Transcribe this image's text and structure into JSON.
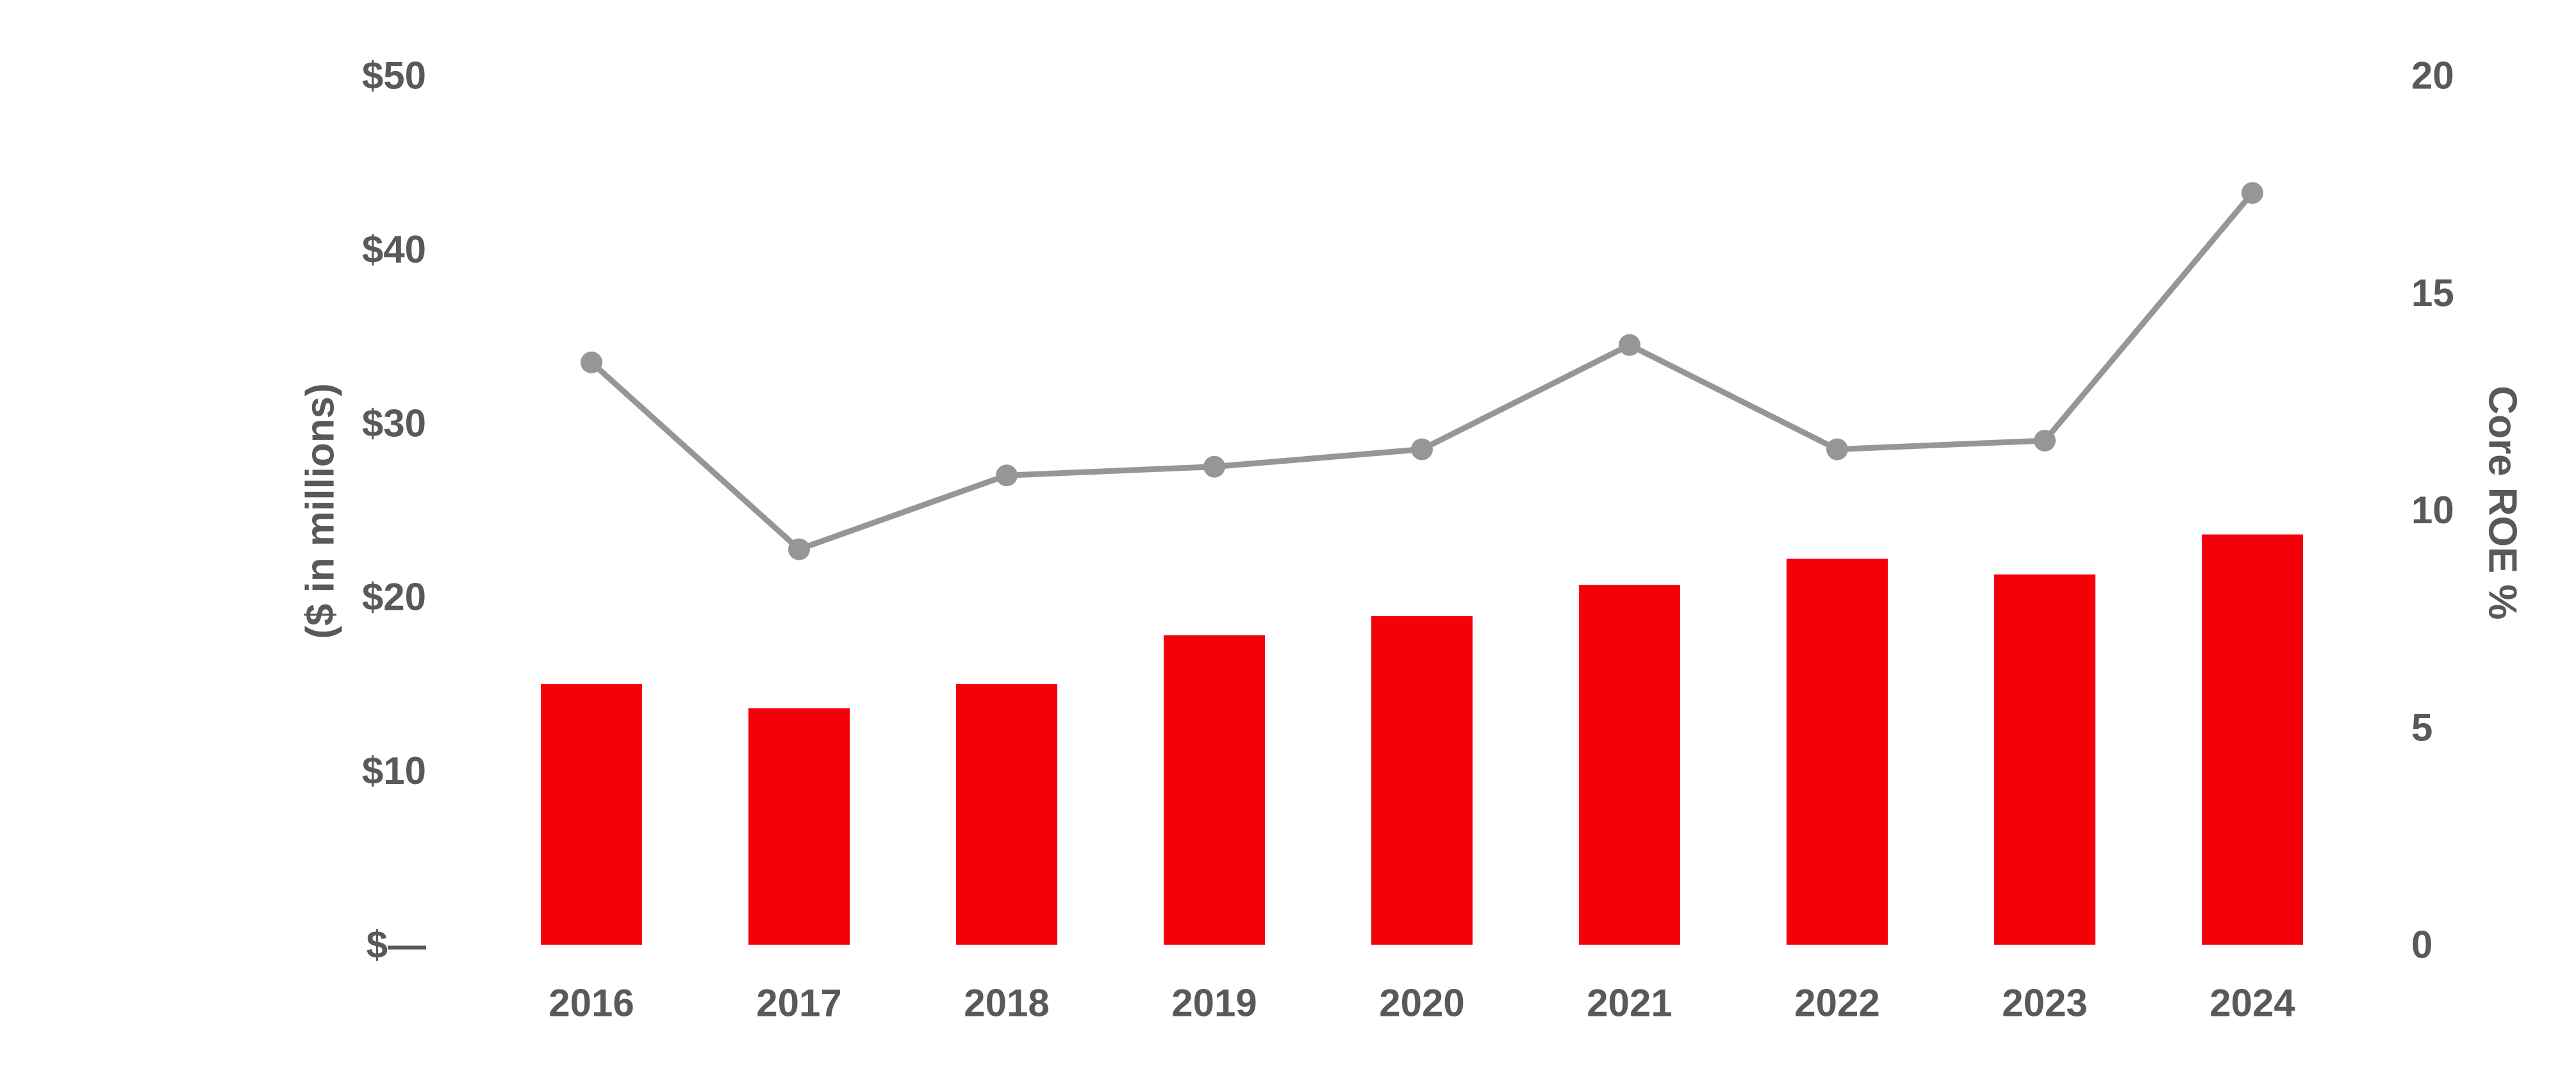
{
  "chart_data": {
    "type": "bar",
    "categories": [
      "2016",
      "2017",
      "2018",
      "2019",
      "2020",
      "2021",
      "2022",
      "2023",
      "2024"
    ],
    "series": [
      {
        "type": "bar",
        "axis": "left",
        "color": "#f40008",
        "values": [
          15.0,
          13.6,
          15.0,
          17.8,
          18.9,
          20.7,
          22.2,
          21.3,
          23.6
        ]
      },
      {
        "type": "line",
        "axis": "right",
        "color": "#969696",
        "values": [
          13.4,
          9.1,
          10.8,
          11.0,
          11.4,
          13.8,
          11.4,
          11.6,
          17.3
        ]
      }
    ],
    "ylabel": "($ in millions)",
    "y2label": "Core ROE %",
    "ylim": [
      0,
      50
    ],
    "y2lim": [
      0,
      20
    ],
    "yticks": [
      {
        "value": 0,
        "label": "$—"
      },
      {
        "value": 10,
        "label": "$10"
      },
      {
        "value": 20,
        "label": "$20"
      },
      {
        "value": 30,
        "label": "$30"
      },
      {
        "value": 40,
        "label": "$40"
      },
      {
        "value": 50,
        "label": "$50"
      }
    ],
    "y2ticks": [
      {
        "value": 0,
        "label": "0"
      },
      {
        "value": 5,
        "label": "5"
      },
      {
        "value": 10,
        "label": "10"
      },
      {
        "value": 15,
        "label": "15"
      },
      {
        "value": 20,
        "label": "20"
      }
    ],
    "grid": false,
    "legend": "none"
  }
}
